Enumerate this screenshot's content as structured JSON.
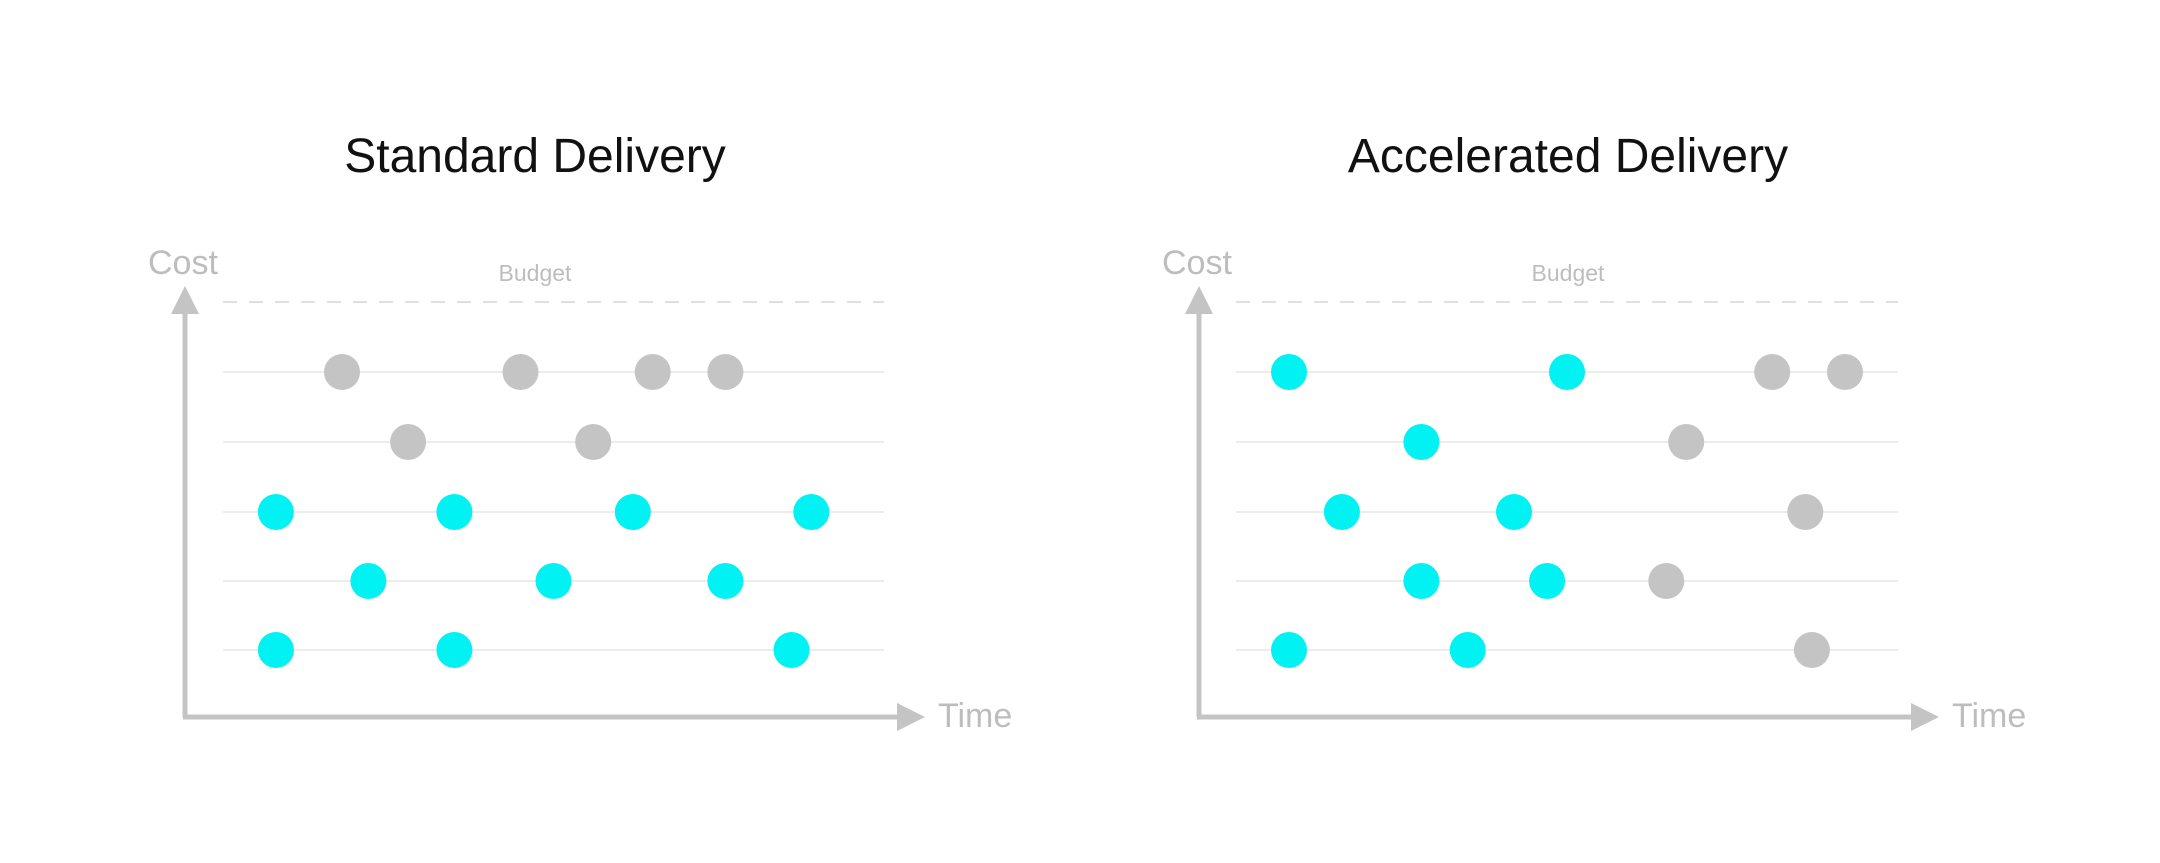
{
  "colors": {
    "active": "#00F2F2",
    "inactive": "#C4C4C4",
    "axis": "#C4C4C4",
    "gridline": "#E6E6E6",
    "budget_line": "#E0E0E0",
    "label": "#BDBDBD",
    "title": "#111111"
  },
  "panels": [
    {
      "title": "Standard Delivery",
      "y_axis_label": "Cost",
      "x_axis_label": "Time",
      "budget_label": "Budget",
      "rows": [
        {
          "dots": [
            {
              "t": 0.18,
              "state": "inactive"
            },
            {
              "t": 0.45,
              "state": "inactive"
            },
            {
              "t": 0.65,
              "state": "inactive"
            },
            {
              "t": 0.76,
              "state": "inactive"
            }
          ]
        },
        {
          "dots": [
            {
              "t": 0.28,
              "state": "inactive"
            },
            {
              "t": 0.56,
              "state": "inactive"
            }
          ]
        },
        {
          "dots": [
            {
              "t": 0.08,
              "state": "active"
            },
            {
              "t": 0.35,
              "state": "active"
            },
            {
              "t": 0.62,
              "state": "active"
            },
            {
              "t": 0.89,
              "state": "active"
            }
          ]
        },
        {
          "dots": [
            {
              "t": 0.22,
              "state": "active"
            },
            {
              "t": 0.5,
              "state": "active"
            },
            {
              "t": 0.76,
              "state": "active"
            }
          ]
        },
        {
          "dots": [
            {
              "t": 0.08,
              "state": "active"
            },
            {
              "t": 0.35,
              "state": "active"
            },
            {
              "t": 0.86,
              "state": "active"
            }
          ]
        }
      ]
    },
    {
      "title": "Accelerated Delivery",
      "y_axis_label": "Cost",
      "x_axis_label": "Time",
      "budget_label": "Budget",
      "rows": [
        {
          "dots": [
            {
              "t": 0.08,
              "state": "active"
            },
            {
              "t": 0.5,
              "state": "active"
            },
            {
              "t": 0.81,
              "state": "inactive"
            },
            {
              "t": 0.92,
              "state": "inactive"
            }
          ]
        },
        {
          "dots": [
            {
              "t": 0.28,
              "state": "active"
            },
            {
              "t": 0.68,
              "state": "inactive"
            }
          ]
        },
        {
          "dots": [
            {
              "t": 0.16,
              "state": "active"
            },
            {
              "t": 0.42,
              "state": "active"
            },
            {
              "t": 0.86,
              "state": "inactive"
            }
          ]
        },
        {
          "dots": [
            {
              "t": 0.28,
              "state": "active"
            },
            {
              "t": 0.47,
              "state": "active"
            },
            {
              "t": 0.65,
              "state": "inactive"
            }
          ]
        },
        {
          "dots": [
            {
              "t": 0.08,
              "state": "active"
            },
            {
              "t": 0.35,
              "state": "active"
            },
            {
              "t": 0.87,
              "state": "inactive"
            }
          ]
        }
      ]
    }
  ]
}
